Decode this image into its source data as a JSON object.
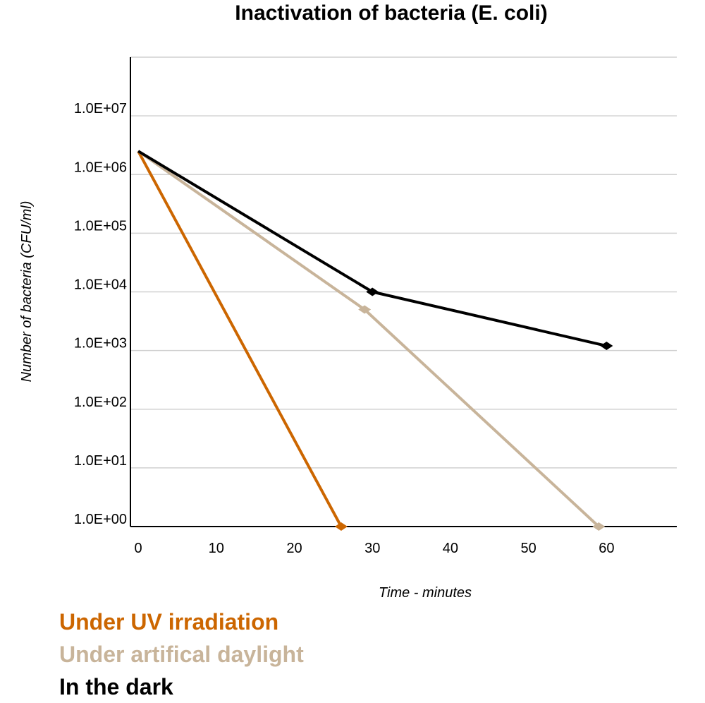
{
  "chart_data": {
    "type": "line",
    "title": "Inactivation of bacteria (E. coli)",
    "xlabel": "Time - minutes",
    "ylabel": "Number of bacteria  (CFU/ml)",
    "y_scale": "log",
    "xlim": [
      -1,
      69
    ],
    "ylim_log10": [
      0,
      8
    ],
    "x_ticks": [
      0,
      10,
      20,
      30,
      40,
      50,
      60
    ],
    "x_tick_labels": [
      "0",
      "10",
      "20",
      "30",
      "40",
      "50",
      "60"
    ],
    "y_ticks": [
      1,
      10,
      100,
      1000,
      10000,
      100000,
      1000000,
      10000000
    ],
    "y_tick_labels": [
      "1.0E+00",
      "1.0E+01",
      "1.0E+02",
      "1.0E+03",
      "1.0E+04",
      "1.0E+05",
      "1.0E+06",
      "1.0E+07"
    ],
    "grid": "horizontal",
    "legend_position": "bottom-left",
    "series": [
      {
        "name": "Under UV irradiation",
        "color": "#cc6600",
        "marker": "diamond",
        "points": [
          [
            0,
            2500000
          ],
          [
            26,
            1
          ]
        ]
      },
      {
        "name": "Under artifical daylight",
        "color": "#c8b49a",
        "marker": "diamond",
        "points": [
          [
            0,
            2500000
          ],
          [
            29,
            5000
          ],
          [
            59,
            1
          ]
        ]
      },
      {
        "name": "In the dark",
        "color": "#000000",
        "marker": "diamond",
        "points": [
          [
            0,
            2500000
          ],
          [
            30,
            10000
          ],
          [
            60,
            1200
          ]
        ]
      }
    ]
  }
}
